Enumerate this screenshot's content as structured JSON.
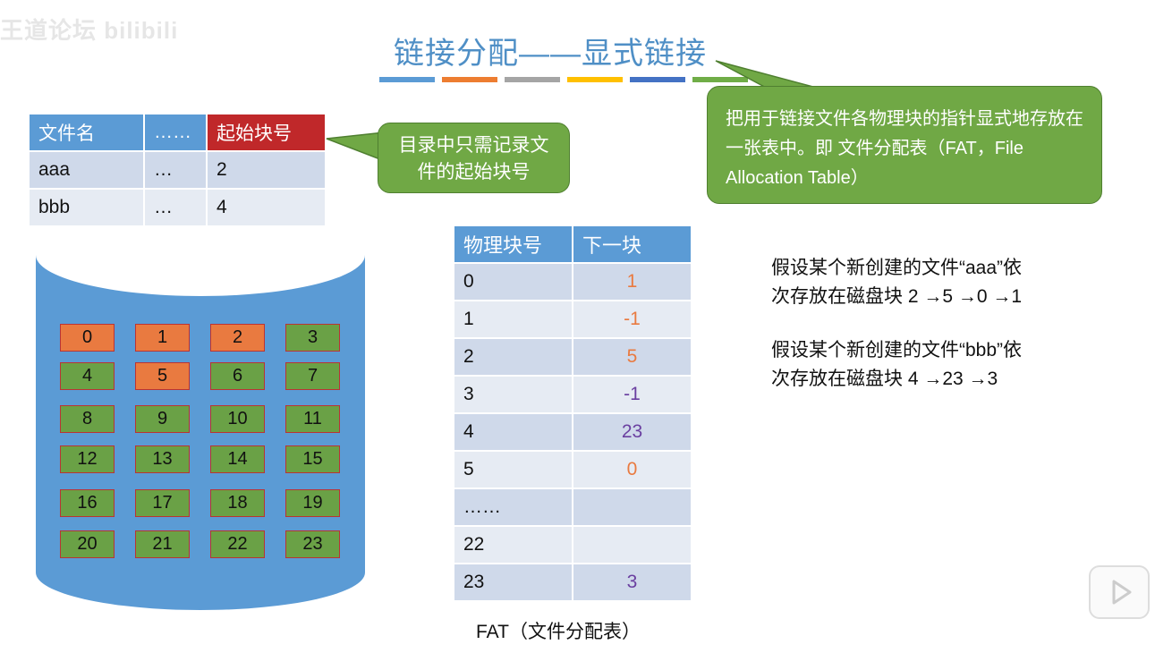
{
  "watermark": "王道论坛 bilibili",
  "title": "链接分配——显式链接",
  "title_bar_colors": [
    "#5b9bd5",
    "#ed7d31",
    "#a5a5a5",
    "#ffc000",
    "#4472c4",
    "#70ad47"
  ],
  "directory": {
    "headers": [
      "文件名",
      "……",
      "起始块号"
    ],
    "rows": [
      [
        "aaa",
        "…",
        "2"
      ],
      [
        "bbb",
        "…",
        "4"
      ]
    ]
  },
  "callout_directory": "目录中只需记录文件的起始块号",
  "callout_fat": "把用于链接文件各物理块的指针显式地存放在一张表中。即 文件分配表（FAT，File Allocation Table）",
  "disk": {
    "blocks": [
      "0",
      "1",
      "2",
      "3",
      "4",
      "5",
      "6",
      "7",
      "8",
      "9",
      "10",
      "11",
      "12",
      "13",
      "14",
      "15",
      "16",
      "17",
      "18",
      "19",
      "20",
      "21",
      "22",
      "23"
    ],
    "used_by_aaa": [
      "0",
      "1",
      "2",
      "5"
    ],
    "colors": {
      "used": "#e97a40",
      "free": "#6aa146",
      "disk": "#5b9bd5"
    }
  },
  "fat": {
    "headers": [
      "物理块号",
      "下一块"
    ],
    "rows": [
      [
        "0",
        "1",
        "aaa"
      ],
      [
        "1",
        "-1",
        "aaa"
      ],
      [
        "2",
        "5",
        "aaa"
      ],
      [
        "3",
        "-1",
        "bbb"
      ],
      [
        "4",
        "23",
        "bbb"
      ],
      [
        "5",
        "0",
        "aaa"
      ],
      [
        "……",
        "",
        ""
      ],
      [
        "22",
        "",
        ""
      ],
      [
        "23",
        "3",
        "bbb"
      ]
    ],
    "caption": "FAT（文件分配表）",
    "colors": {
      "aaa": "#e97a40",
      "bbb": "#6a3fa0"
    }
  },
  "notes": [
    {
      "line1": "假设某个新创建的文件“aaa”依",
      "line2": "次存放在磁盘块 2 →5 →0 →1"
    },
    {
      "line1": "假设某个新创建的文件“bbb”依",
      "line2": "次存放在磁盘块 4 →23 →3"
    }
  ]
}
